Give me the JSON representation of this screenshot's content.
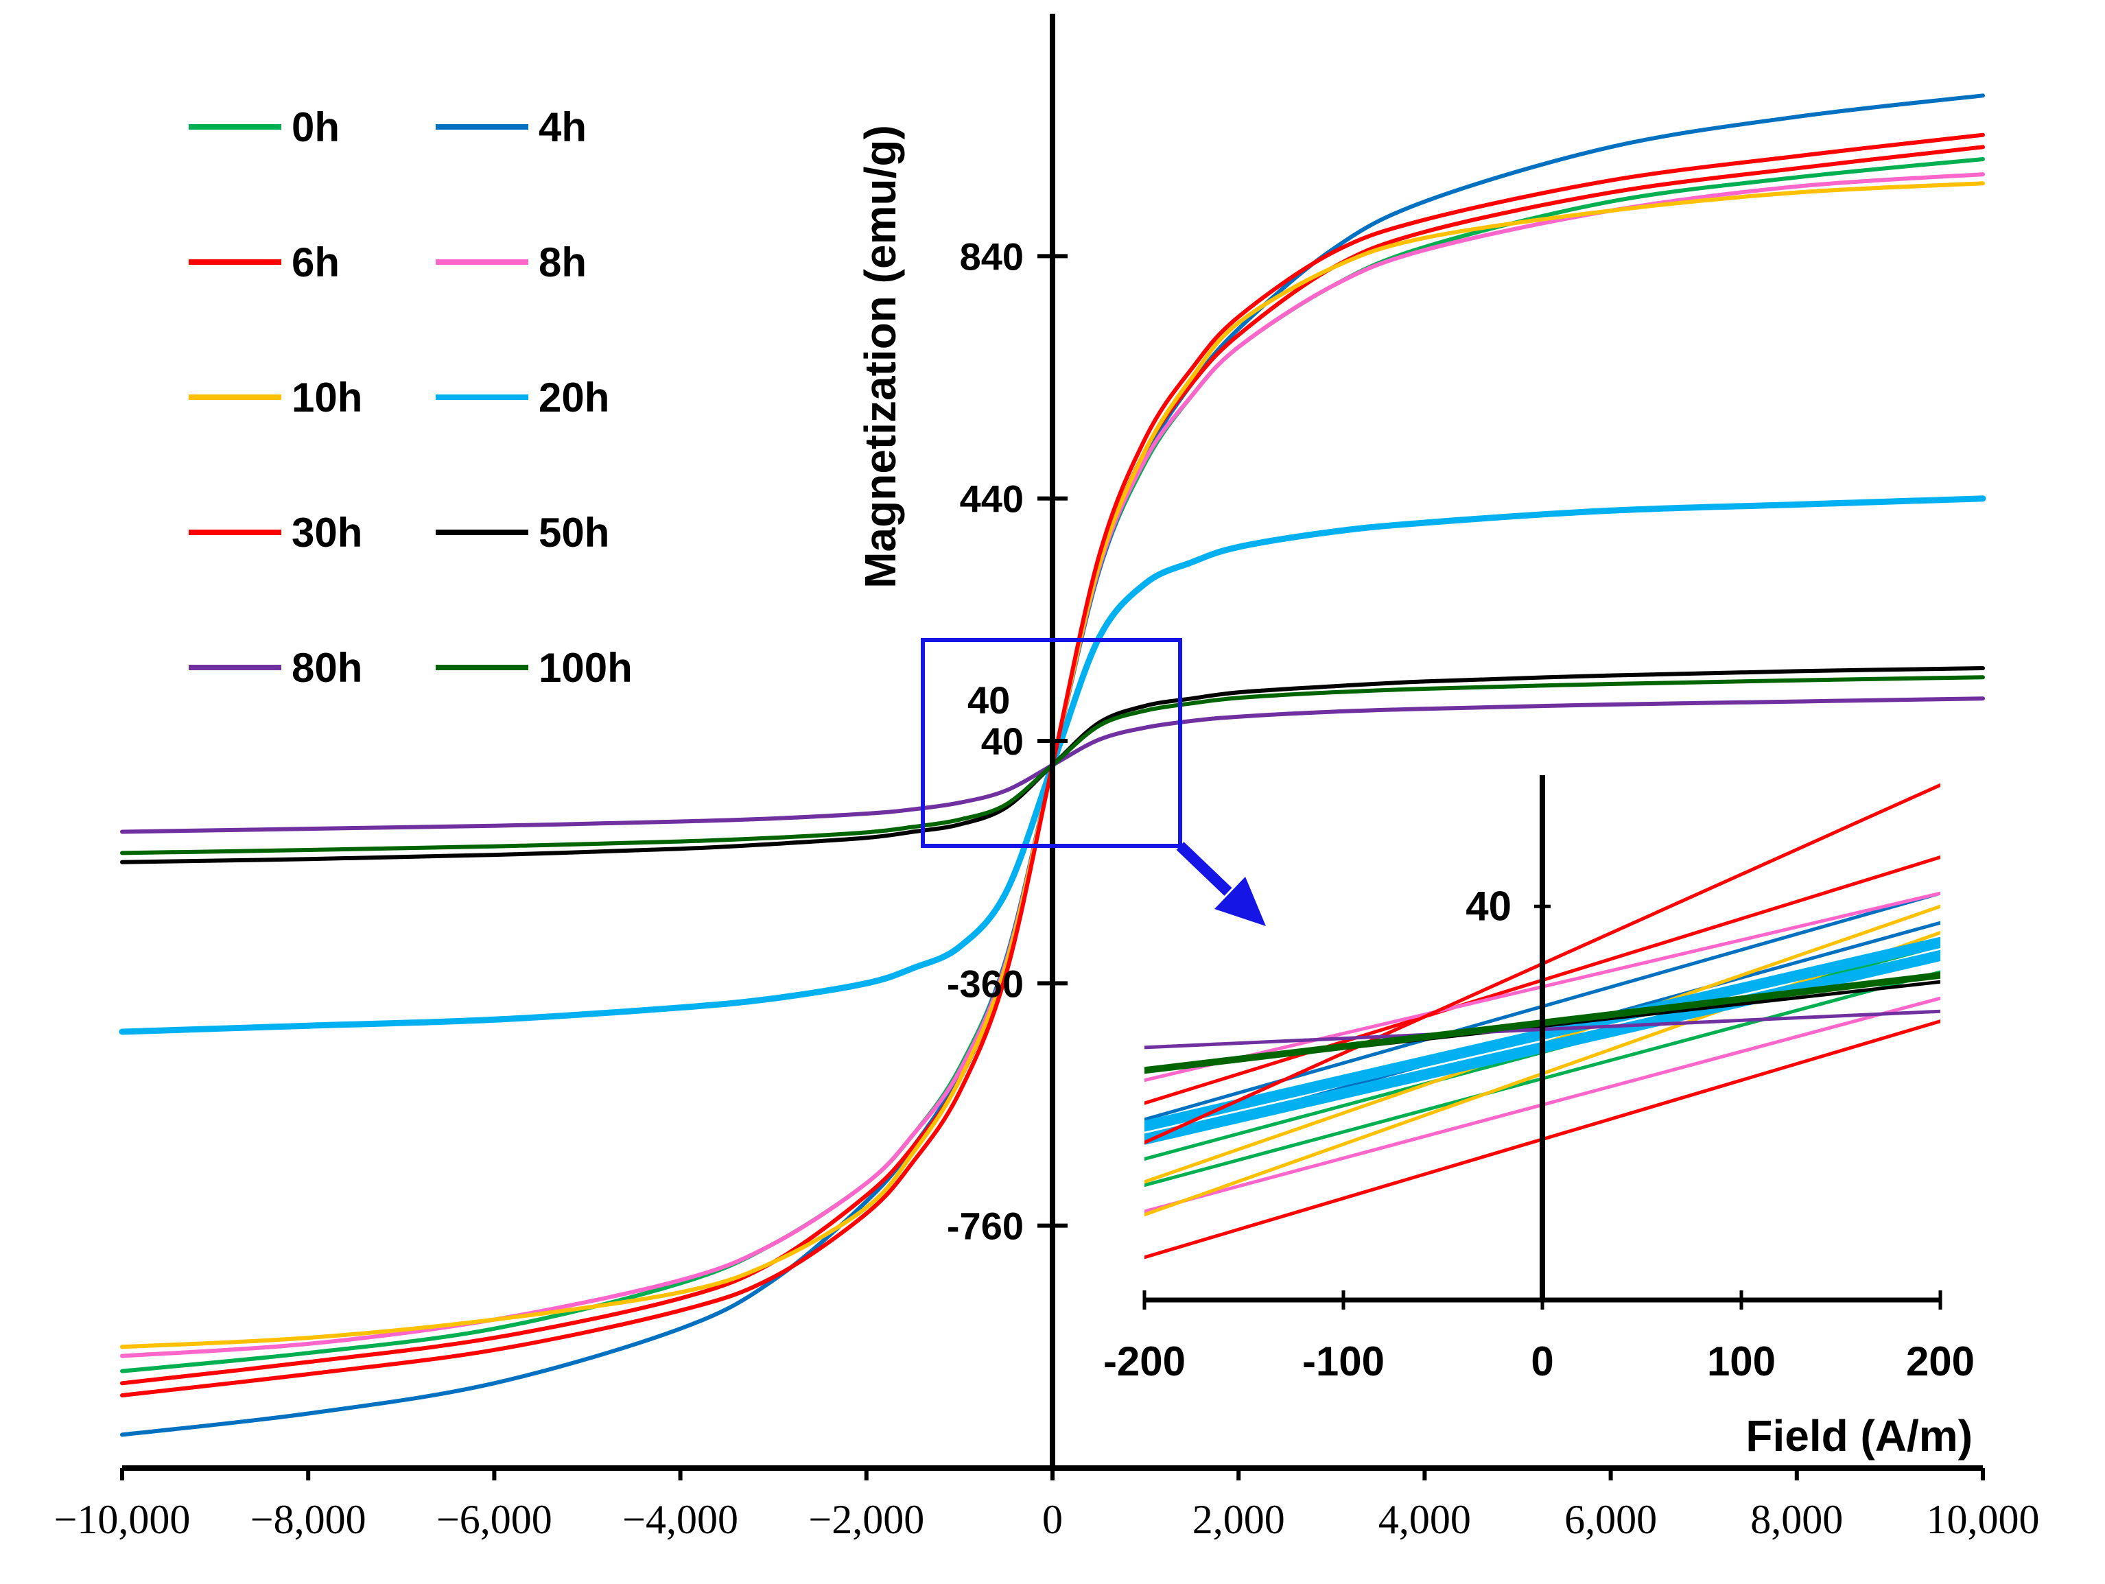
{
  "chart_data": [
    {
      "type": "line",
      "title": "",
      "xlabel": "",
      "ylabel": "Magnetization (emu/g)",
      "xlim": [
        -10000,
        10000
      ],
      "ylim": [
        -1160,
        1240
      ],
      "x_ticks": [
        {
          "value": -10000,
          "label": "−10,000"
        },
        {
          "value": -8000,
          "label": "−8,000"
        },
        {
          "value": -6000,
          "label": "−6,000"
        },
        {
          "value": -4000,
          "label": "−4,000"
        },
        {
          "value": -2000,
          "label": "−2,000"
        },
        {
          "value": 0,
          "label": "0"
        },
        {
          "value": 2000,
          "label": "2,000"
        },
        {
          "value": 4000,
          "label": "4,000"
        },
        {
          "value": 6000,
          "label": "6,000"
        },
        {
          "value": 8000,
          "label": "8,000"
        },
        {
          "value": 10000,
          "label": "10,000"
        }
      ],
      "y_ticks": [
        {
          "value": 840,
          "label": "840"
        },
        {
          "value": 440,
          "label": "440"
        },
        {
          "value": 40,
          "label": "40"
        },
        {
          "value": -360,
          "label": "-360"
        },
        {
          "value": -760,
          "label": "-760"
        }
      ],
      "grid": false,
      "legend_position": "top-left",
      "x": [
        -10000,
        -8000,
        -6000,
        -4000,
        -3000,
        -2000,
        -1500,
        -1000,
        -500,
        0,
        500,
        1000,
        1500,
        2000,
        3000,
        4000,
        6000,
        8000,
        10000
      ],
      "series": [
        {
          "name": "0h",
          "color": "#00b050",
          "values": [
            -1000,
            -970,
            -930,
            -855,
            -790,
            -690,
            -610,
            -500,
            -320,
            0,
            320,
            500,
            610,
            690,
            790,
            855,
            930,
            970,
            1000
          ]
        },
        {
          "name": "4h",
          "color": "#0070c0",
          "values": [
            -1105,
            -1070,
            -1020,
            -930,
            -850,
            -720,
            -630,
            -510,
            -320,
            0,
            320,
            510,
            630,
            720,
            850,
            930,
            1020,
            1070,
            1105
          ]
        },
        {
          "name": "6h",
          "color": "#ff0000",
          "values": [
            -1020,
            -985,
            -945,
            -880,
            -820,
            -710,
            -630,
            -520,
            -330,
            0,
            330,
            520,
            630,
            710,
            820,
            880,
            945,
            985,
            1020
          ]
        },
        {
          "name": "8h",
          "color": "#ff66cc",
          "values": [
            -975,
            -955,
            -915,
            -850,
            -790,
            -690,
            -610,
            -505,
            -325,
            0,
            325,
            505,
            610,
            690,
            790,
            850,
            915,
            955,
            975
          ]
        },
        {
          "name": "10h",
          "color": "#ffc000",
          "values": [
            -960,
            -945,
            -915,
            -870,
            -820,
            -730,
            -640,
            -520,
            -330,
            0,
            330,
            520,
            640,
            730,
            820,
            870,
            915,
            945,
            960
          ]
        },
        {
          "name": "20h",
          "color": "#00b0f0",
          "values": [
            -440,
            -430,
            -420,
            -400,
            -385,
            -360,
            -335,
            -300,
            -210,
            0,
            210,
            300,
            335,
            360,
            385,
            400,
            420,
            430,
            440
          ]
        },
        {
          "name": "30h",
          "color": "#ff0000",
          "values": [
            -1040,
            -1005,
            -965,
            -900,
            -845,
            -740,
            -655,
            -540,
            -345,
            0,
            345,
            540,
            655,
            740,
            845,
            900,
            965,
            1005,
            1040
          ]
        },
        {
          "name": "50h",
          "color": "#000000",
          "values": [
            -160,
            -155,
            -148,
            -138,
            -130,
            -120,
            -110,
            -98,
            -70,
            0,
            70,
            98,
            110,
            120,
            130,
            138,
            148,
            155,
            160
          ]
        },
        {
          "name": "80h",
          "color": "#7030a0",
          "values": [
            -110,
            -105,
            -100,
            -93,
            -88,
            -80,
            -73,
            -62,
            -42,
            0,
            42,
            62,
            73,
            80,
            88,
            93,
            100,
            105,
            110
          ]
        },
        {
          "name": "100h",
          "color": "#006400",
          "values": [
            -145,
            -140,
            -134,
            -126,
            -120,
            -111,
            -102,
            -90,
            -65,
            0,
            65,
            90,
            102,
            111,
            120,
            126,
            134,
            140,
            145
          ]
        }
      ]
    },
    {
      "type": "line",
      "title": "",
      "xlabel": "Field (A/m)",
      "ylabel": "",
      "xlim": [
        -200,
        200
      ],
      "ylim": [
        -80,
        80
      ],
      "x_ticks": [
        {
          "value": -200,
          "label": "-200"
        },
        {
          "value": -100,
          "label": "-100"
        },
        {
          "value": 0,
          "label": "0"
        },
        {
          "value": 100,
          "label": "100"
        },
        {
          "value": 200,
          "label": "200"
        }
      ],
      "y_ticks": [
        {
          "value": 40,
          "label": "40"
        }
      ],
      "x": [
        -200,
        200
      ],
      "series": [
        {
          "name": "0h",
          "color": "#00b050",
          "values": [
            -45,
            20
          ]
        },
        {
          "name": "0h",
          "color": "#00b050",
          "values": [
            -37,
            28
          ]
        },
        {
          "name": "4h",
          "color": "#0070c0",
          "values": [
            -32,
            35
          ]
        },
        {
          "name": "4h",
          "color": "#0070c0",
          "values": [
            -25,
            44
          ]
        },
        {
          "name": "6h",
          "color": "#ff0000",
          "values": [
            -67,
            5
          ]
        },
        {
          "name": "6h",
          "color": "#ff0000",
          "values": [
            -20,
            55
          ]
        },
        {
          "name": "8h",
          "color": "#ff66cc",
          "values": [
            -53,
            12
          ]
        },
        {
          "name": "8h",
          "color": "#ff66cc",
          "values": [
            -13,
            44
          ]
        },
        {
          "name": "10h",
          "color": "#ffc000",
          "values": [
            -54,
            32
          ]
        },
        {
          "name": "10h",
          "color": "#ffc000",
          "values": [
            -44,
            40
          ]
        },
        {
          "name": "20h",
          "color": "#00b0f0",
          "values": [
            -31,
            25
          ]
        },
        {
          "name": "20h",
          "color": "#00b0f0",
          "values": [
            -27,
            29
          ]
        },
        {
          "name": "30h",
          "color": "#ff0000",
          "values": [
            -32,
            77
          ]
        },
        {
          "name": "50h",
          "color": "#000000",
          "values": [
            -10,
            17
          ]
        },
        {
          "name": "80h",
          "color": "#7030a0",
          "values": [
            -3,
            8
          ]
        },
        {
          "name": "100h",
          "color": "#006400",
          "values": [
            -10,
            19
          ]
        }
      ]
    }
  ],
  "zoom_box_label": "40"
}
